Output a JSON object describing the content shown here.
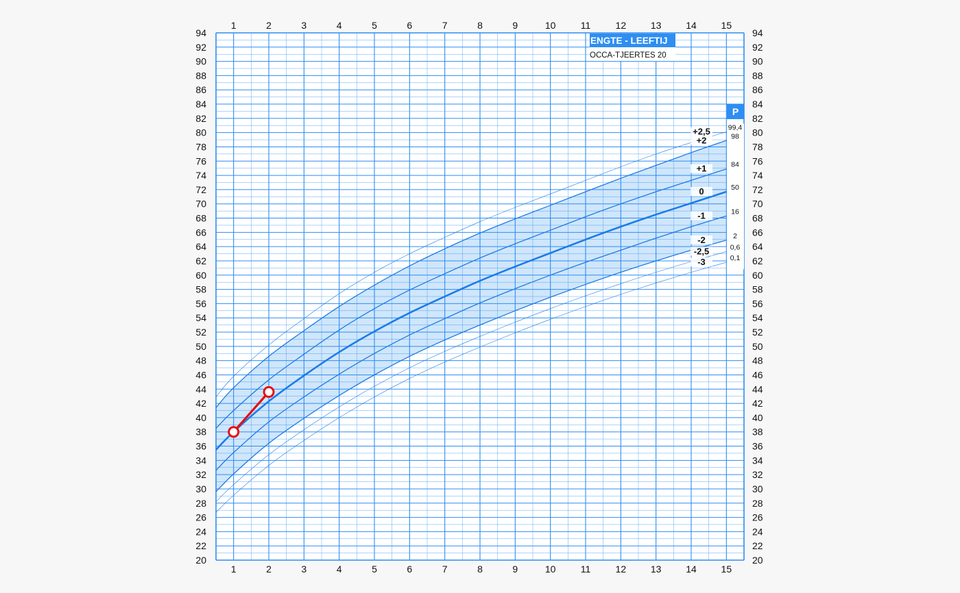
{
  "chart_data": {
    "type": "line",
    "title": "ENGTE - LEEFTIJ",
    "subtitle": "OCCA-TJEERTES 20",
    "xlim": [
      0.5,
      15.5
    ],
    "ylim": [
      20,
      94
    ],
    "x_ticks": [
      1,
      2,
      3,
      4,
      5,
      6,
      7,
      8,
      9,
      10,
      11,
      12,
      13,
      14,
      15
    ],
    "y_ticks": [
      20,
      22,
      24,
      26,
      28,
      30,
      32,
      34,
      36,
      38,
      40,
      42,
      44,
      46,
      48,
      50,
      52,
      54,
      56,
      58,
      60,
      62,
      64,
      66,
      68,
      70,
      72,
      74,
      76,
      78,
      80,
      82,
      84,
      86,
      88,
      90,
      92,
      94
    ],
    "grid": true,
    "percentile_header": "P",
    "reference_curves": [
      {
        "sd": "+2,5",
        "percentile": "99,4",
        "band": "outer",
        "x": [
          0.5,
          1,
          2,
          3,
          4,
          5,
          6,
          7,
          8,
          9,
          10,
          11,
          12,
          13,
          14,
          15
        ],
        "y": [
          42.9,
          45.8,
          50.2,
          53.9,
          57.4,
          60.4,
          63.0,
          65.3,
          67.5,
          69.5,
          71.4,
          73.3,
          75.2,
          77.0,
          78.6,
          80.1
        ]
      },
      {
        "sd": "+2",
        "percentile": "98",
        "band": "inner",
        "x": [
          0.5,
          1,
          2,
          3,
          4,
          5,
          6,
          7,
          8,
          9,
          10,
          11,
          12,
          13,
          14,
          15
        ],
        "y": [
          41.4,
          44.2,
          48.6,
          52.2,
          55.6,
          58.6,
          61.3,
          63.7,
          65.9,
          67.9,
          69.8,
          71.7,
          73.6,
          75.4,
          77.2,
          78.9
        ]
      },
      {
        "sd": "+1",
        "percentile": "84",
        "band": "inner",
        "x": [
          0.5,
          1,
          2,
          3,
          4,
          5,
          6,
          7,
          8,
          9,
          10,
          11,
          12,
          13,
          14,
          15
        ],
        "y": [
          38.5,
          41.0,
          45.3,
          48.9,
          52.3,
          55.3,
          57.9,
          60.2,
          62.4,
          64.4,
          66.3,
          68.2,
          70.0,
          71.7,
          73.3,
          74.9
        ]
      },
      {
        "sd": "0",
        "percentile": "50",
        "band": "median",
        "x": [
          0.5,
          1,
          2,
          3,
          4,
          5,
          6,
          7,
          8,
          9,
          10,
          11,
          12,
          13,
          14,
          15
        ],
        "y": [
          35.5,
          38.0,
          42.3,
          45.9,
          49.2,
          52.1,
          54.7,
          57.0,
          59.2,
          61.2,
          63.1,
          65.0,
          66.8,
          68.5,
          70.1,
          71.7
        ]
      },
      {
        "sd": "-1",
        "percentile": "16",
        "band": "inner",
        "x": [
          0.5,
          1,
          2,
          3,
          4,
          5,
          6,
          7,
          8,
          9,
          10,
          11,
          12,
          13,
          14,
          15
        ],
        "y": [
          32.6,
          35.1,
          39.4,
          42.9,
          46.1,
          49.0,
          51.6,
          53.9,
          56.1,
          58.1,
          60.0,
          61.8,
          63.5,
          65.2,
          66.8,
          68.3
        ]
      },
      {
        "sd": "-2",
        "percentile": "2",
        "band": "inner",
        "x": [
          0.5,
          1,
          2,
          3,
          4,
          5,
          6,
          7,
          8,
          9,
          10,
          11,
          12,
          13,
          14,
          15
        ],
        "y": [
          29.6,
          32.1,
          36.4,
          39.9,
          43.1,
          46.0,
          48.6,
          50.9,
          53.0,
          55.0,
          56.9,
          58.7,
          60.4,
          62.0,
          63.5,
          64.9
        ]
      },
      {
        "sd": "-2,5",
        "percentile": "0,6",
        "band": "outer",
        "x": [
          0.5,
          1,
          2,
          3,
          4,
          5,
          6,
          7,
          8,
          9,
          10,
          11,
          12,
          13,
          14,
          15
        ],
        "y": [
          28.2,
          30.6,
          34.8,
          38.3,
          41.5,
          44.4,
          47.0,
          49.3,
          51.4,
          53.4,
          55.3,
          57.1,
          58.8,
          60.4,
          61.9,
          63.3
        ]
      },
      {
        "sd": "-3",
        "percentile": "0,1",
        "band": "outer",
        "x": [
          0.5,
          1,
          2,
          3,
          4,
          5,
          6,
          7,
          8,
          9,
          10,
          11,
          12,
          13,
          14,
          15
        ],
        "y": [
          26.7,
          29.1,
          33.3,
          36.8,
          40.0,
          42.9,
          45.5,
          47.8,
          49.9,
          51.9,
          53.8,
          55.6,
          57.3,
          58.9,
          60.4,
          61.8
        ]
      }
    ],
    "measurements": {
      "x": [
        1,
        2
      ],
      "y": [
        38.0,
        43.6
      ]
    },
    "colors": {
      "background": "#ffffff",
      "grid": "#2f8cf0",
      "band_fill": "#cfe6fb",
      "curve": "#1c7ce6",
      "measurement": "#e60f0f",
      "header_fill": "#2e8ef2",
      "header_text": "#ffffff"
    }
  }
}
